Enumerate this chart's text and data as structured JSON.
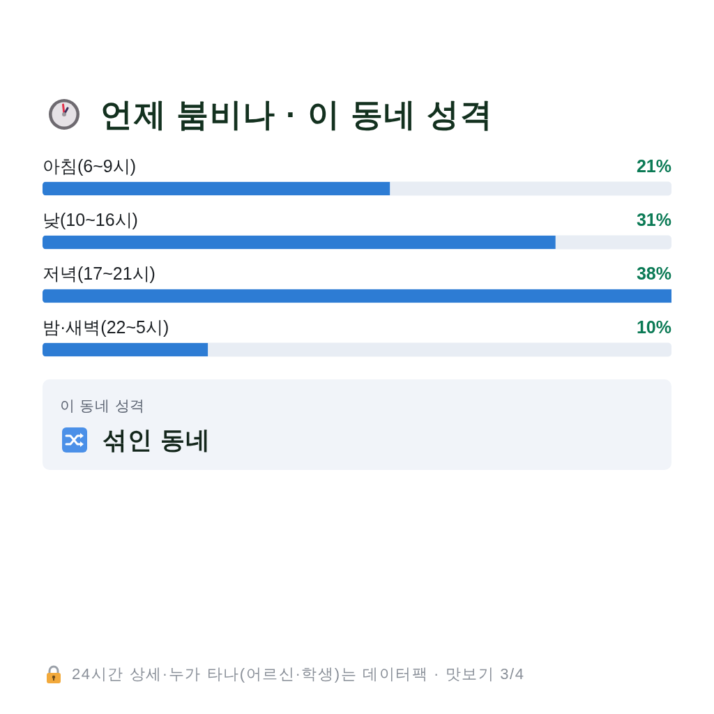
{
  "chart_data": {
    "type": "bar",
    "orientation": "horizontal",
    "title": "언제 붐비나 · 이 동네 성격",
    "categories": [
      "아침(6~9시)",
      "낮(10~16시)",
      "저녁(17~21시)",
      "밤·새벽(22~5시)"
    ],
    "values": [
      21,
      31,
      38,
      10
    ],
    "value_labels": [
      "21%",
      "31%",
      "38%",
      "10%"
    ],
    "color": "#2d7cd4",
    "annotations": [
      "이 동네 성격",
      "섞인 동네",
      "24시간 상세·누가 타나(어르신·학생)는 데이터팩 · 맛보기 3/4"
    ]
  }
}
